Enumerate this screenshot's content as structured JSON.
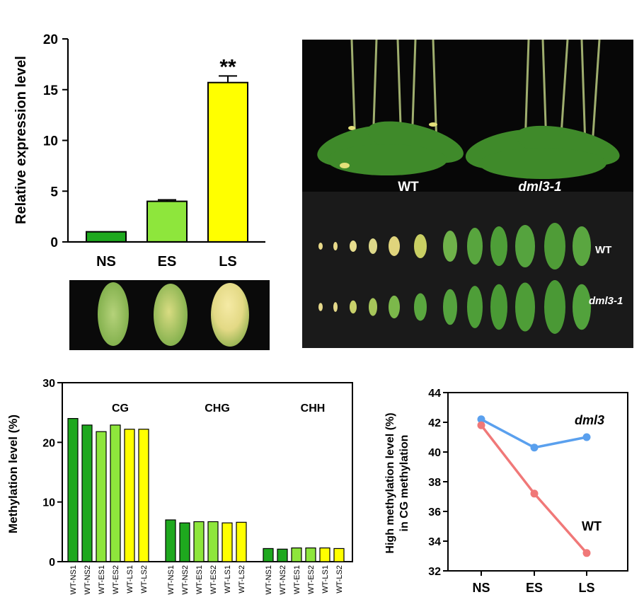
{
  "colors": {
    "ns": "#1ea81e",
    "es": "#8ee63c",
    "ls": "#ffff00",
    "dml3_line": "#5aa0ee",
    "wt_line": "#f07878",
    "photo_bg": "#0a0a0a"
  },
  "chart_data": [
    {
      "type": "bar",
      "ylabel": "Relative expression level",
      "ylim": [
        0,
        20
      ],
      "yticks": [
        "0",
        "5",
        "10",
        "15",
        "20"
      ],
      "categories": [
        "NS",
        "ES",
        "LS"
      ],
      "values": [
        1.0,
        4.0,
        15.7
      ],
      "errors": [
        0.0,
        0.15,
        0.65
      ],
      "annotation": "**"
    },
    {
      "type": "bar",
      "ylabel": "Methylation level (%)",
      "ylim": [
        0,
        30
      ],
      "yticks": [
        "0",
        "10",
        "20",
        "30"
      ],
      "groups": [
        {
          "label": "CG",
          "values": [
            24.0,
            22.9,
            21.8,
            22.9,
            22.2,
            22.2
          ]
        },
        {
          "label": "CHG",
          "values": [
            7.0,
            6.5,
            6.7,
            6.7,
            6.5,
            6.6
          ]
        },
        {
          "label": "CHH",
          "values": [
            2.2,
            2.1,
            2.3,
            2.3,
            2.3,
            2.2
          ]
        }
      ],
      "samples": [
        "WT-NS1",
        "WT-NS2",
        "WT-ES1",
        "WT-ES2",
        "WT-LS1",
        "WT-LS2"
      ]
    },
    {
      "type": "line",
      "ylabel_line1": "High methylation level (%)",
      "ylabel_line2": "in CG methylation",
      "ylim": [
        32,
        44
      ],
      "yticks": [
        "32",
        "34",
        "36",
        "38",
        "40",
        "42",
        "44"
      ],
      "x": [
        "NS",
        "ES",
        "LS"
      ],
      "series": [
        {
          "name": "dml3",
          "values": [
            42.2,
            40.3,
            41.0
          ]
        },
        {
          "name": "WT",
          "values": [
            41.8,
            37.2,
            33.2
          ]
        }
      ]
    }
  ],
  "photos": {
    "plants_labels": [
      "WT",
      "dml3-1"
    ],
    "leaves_labels": [
      "WT",
      "dml3-1"
    ]
  }
}
